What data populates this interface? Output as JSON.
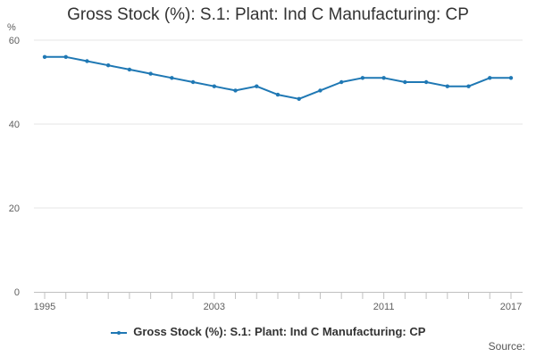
{
  "colors": {
    "series": "#1f78b4",
    "grid": "#e6e6e6",
    "axis": "#c0c0c0",
    "text": "#333333",
    "tick_text": "#606060"
  },
  "chart_data": {
    "type": "line",
    "title": "Gross Stock (%): S.1: Plant: Ind C Manufacturing: CP",
    "ylabel": "%",
    "xlabel": "",
    "ylim": [
      0,
      60
    ],
    "yticks": [
      0,
      20,
      40,
      60
    ],
    "xlim": [
      1995,
      2017
    ],
    "xticks": [
      1995,
      2003,
      2011,
      2017
    ],
    "grid": true,
    "legend_position": "bottom",
    "x": [
      1995,
      1996,
      1997,
      1998,
      1999,
      2000,
      2001,
      2002,
      2003,
      2004,
      2005,
      2006,
      2007,
      2008,
      2009,
      2010,
      2011,
      2012,
      2013,
      2014,
      2015,
      2016,
      2017
    ],
    "series": [
      {
        "name": "Gross Stock (%): S.1: Plant: Ind C Manufacturing: CP",
        "values": [
          56,
          56,
          55,
          54,
          53,
          52,
          51,
          50,
          49,
          48,
          49,
          47,
          46,
          48,
          50,
          51,
          51,
          50,
          50,
          49,
          49,
          51,
          51
        ]
      }
    ]
  },
  "source_label": "Source:"
}
